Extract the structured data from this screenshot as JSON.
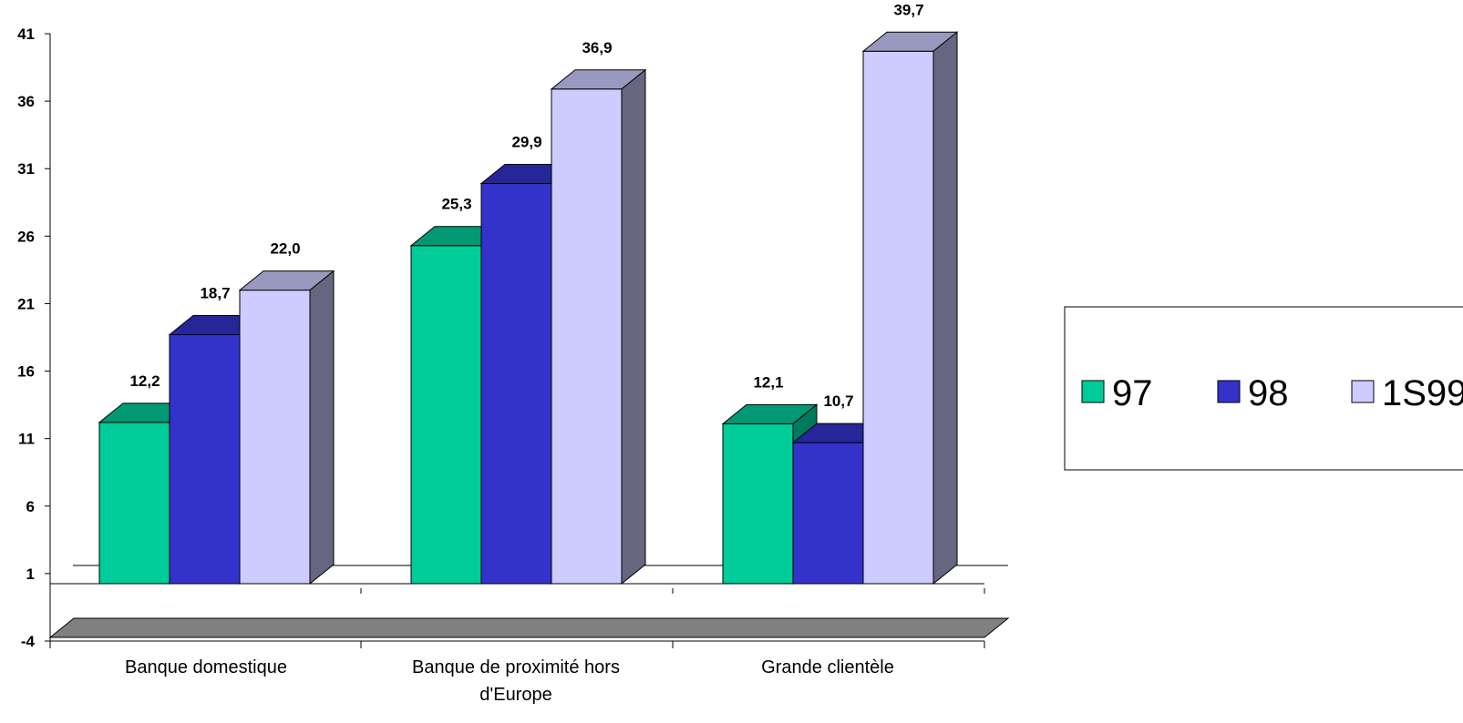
{
  "chart_data": {
    "type": "bar",
    "categories": [
      "Banque domestique",
      "Banque de proximité hors d'Europe",
      "Grande clientèle"
    ],
    "category_lines": [
      [
        "Banque domestique"
      ],
      [
        "Banque de proximité hors",
        "d'Europe"
      ],
      [
        "Grande clientèle"
      ]
    ],
    "series": [
      {
        "name": "97",
        "values": [
          12.2,
          25.3,
          12.1
        ],
        "labels": [
          "12,2",
          "25,3",
          "12,1"
        ]
      },
      {
        "name": "98",
        "values": [
          18.7,
          29.9,
          10.7
        ],
        "labels": [
          "18,7",
          "29,9",
          "10,7"
        ]
      },
      {
        "name": "1S99",
        "values": [
          22.0,
          36.9,
          39.7
        ],
        "labels": [
          "22,0",
          "36,9",
          "39,7"
        ]
      }
    ],
    "y_ticks": [
      41,
      36,
      31,
      26,
      21,
      16,
      11,
      6,
      1,
      -4
    ],
    "ylim": [
      -4,
      41
    ],
    "title": "",
    "xlabel": "",
    "ylabel": "",
    "grid": false,
    "legend_position": "right",
    "three_d": true,
    "colors": {
      "series_front": [
        "#00cc99",
        "#3333cc",
        "#ccccff"
      ],
      "series_top": [
        "#009973",
        "#262699",
        "#9999bf"
      ],
      "series_side": [
        "#007a5c",
        "#1a1a80",
        "#666680"
      ],
      "floor": "#808080",
      "axis": "#000000"
    }
  }
}
